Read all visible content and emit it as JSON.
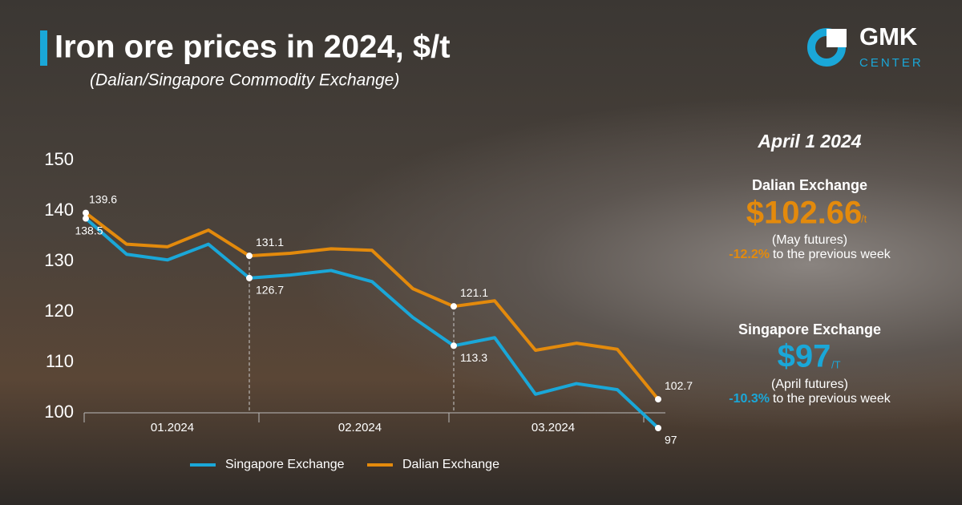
{
  "chart_data": {
    "type": "line",
    "title": "Iron ore prices in 2024, $/t",
    "subtitle": "(Dalian/Singapore Commodity Exchange)",
    "categories": [
      null,
      null,
      null,
      null,
      null,
      null,
      null,
      null,
      null,
      null,
      null,
      null,
      null,
      null,
      null
    ],
    "x_sections": [
      "01.2024",
      "02.2024",
      "03.2024"
    ],
    "series": [
      {
        "name": "Singapore Exchange",
        "color": "#1aa7d8",
        "values": [
          138.5,
          131.4,
          130.3,
          133.4,
          126.7,
          127.3,
          128.2,
          126.0,
          118.9,
          113.3,
          114.9,
          103.7,
          105.8,
          104.6,
          97
        ]
      },
      {
        "name": "Dalian Exchange",
        "color": "#e38a0c",
        "values": [
          139.6,
          133.4,
          132.9,
          136.2,
          131.1,
          131.6,
          132.5,
          132.2,
          124.6,
          121.1,
          122.2,
          112.4,
          113.8,
          112.6,
          102.7
        ]
      }
    ],
    "annotated_points": [
      0,
      4,
      9,
      14
    ],
    "ylim": [
      97,
      152
    ],
    "yticks": [
      100,
      110,
      120,
      130,
      140,
      150
    ],
    "legend": "bottom"
  },
  "sidebar": {
    "date": "April 1 2024",
    "dalian": {
      "name": "Dalian Exchange",
      "price": "$102.66",
      "unit": "/t",
      "note": "(May futures)",
      "change": "-12.2%",
      "change_text": "to the previous week"
    },
    "singapore": {
      "name": "Singapore Exchange",
      "price": "$97",
      "unit": "/T",
      "note": "(April futures)",
      "change": "-10.3%",
      "change_text": "to the previous week"
    }
  },
  "logo": {
    "name": "GMK",
    "sub": "CENTER"
  }
}
